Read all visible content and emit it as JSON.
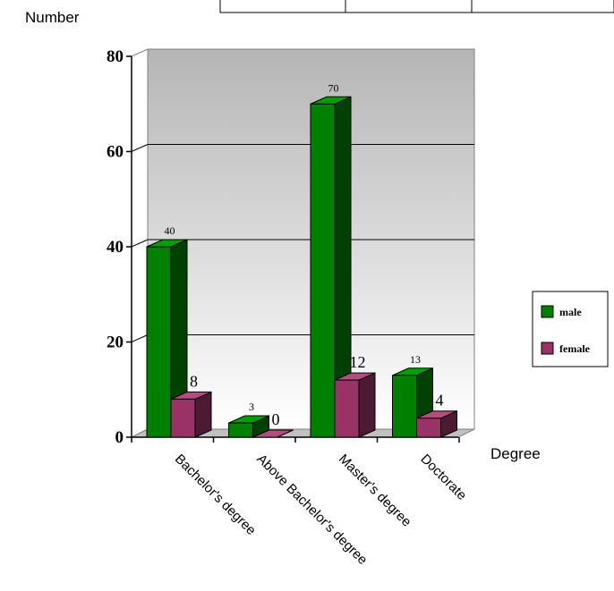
{
  "chart_data": {
    "type": "bar",
    "ylabel": "Number",
    "xlabel": "Degree",
    "ylim": [
      0,
      80
    ],
    "yticks": [
      0,
      20,
      40,
      60,
      80
    ],
    "grid": true,
    "legend_position": "right",
    "categories": [
      "Bachelor's degree",
      "Above Bachelor's degree",
      "Master's degree",
      "Doctorate"
    ],
    "series": [
      {
        "name": "male",
        "values": [
          40,
          3,
          70,
          13
        ],
        "color": "#008000"
      },
      {
        "name": "female",
        "values": [
          8,
          0,
          12,
          4
        ],
        "color": "#993366"
      }
    ]
  }
}
